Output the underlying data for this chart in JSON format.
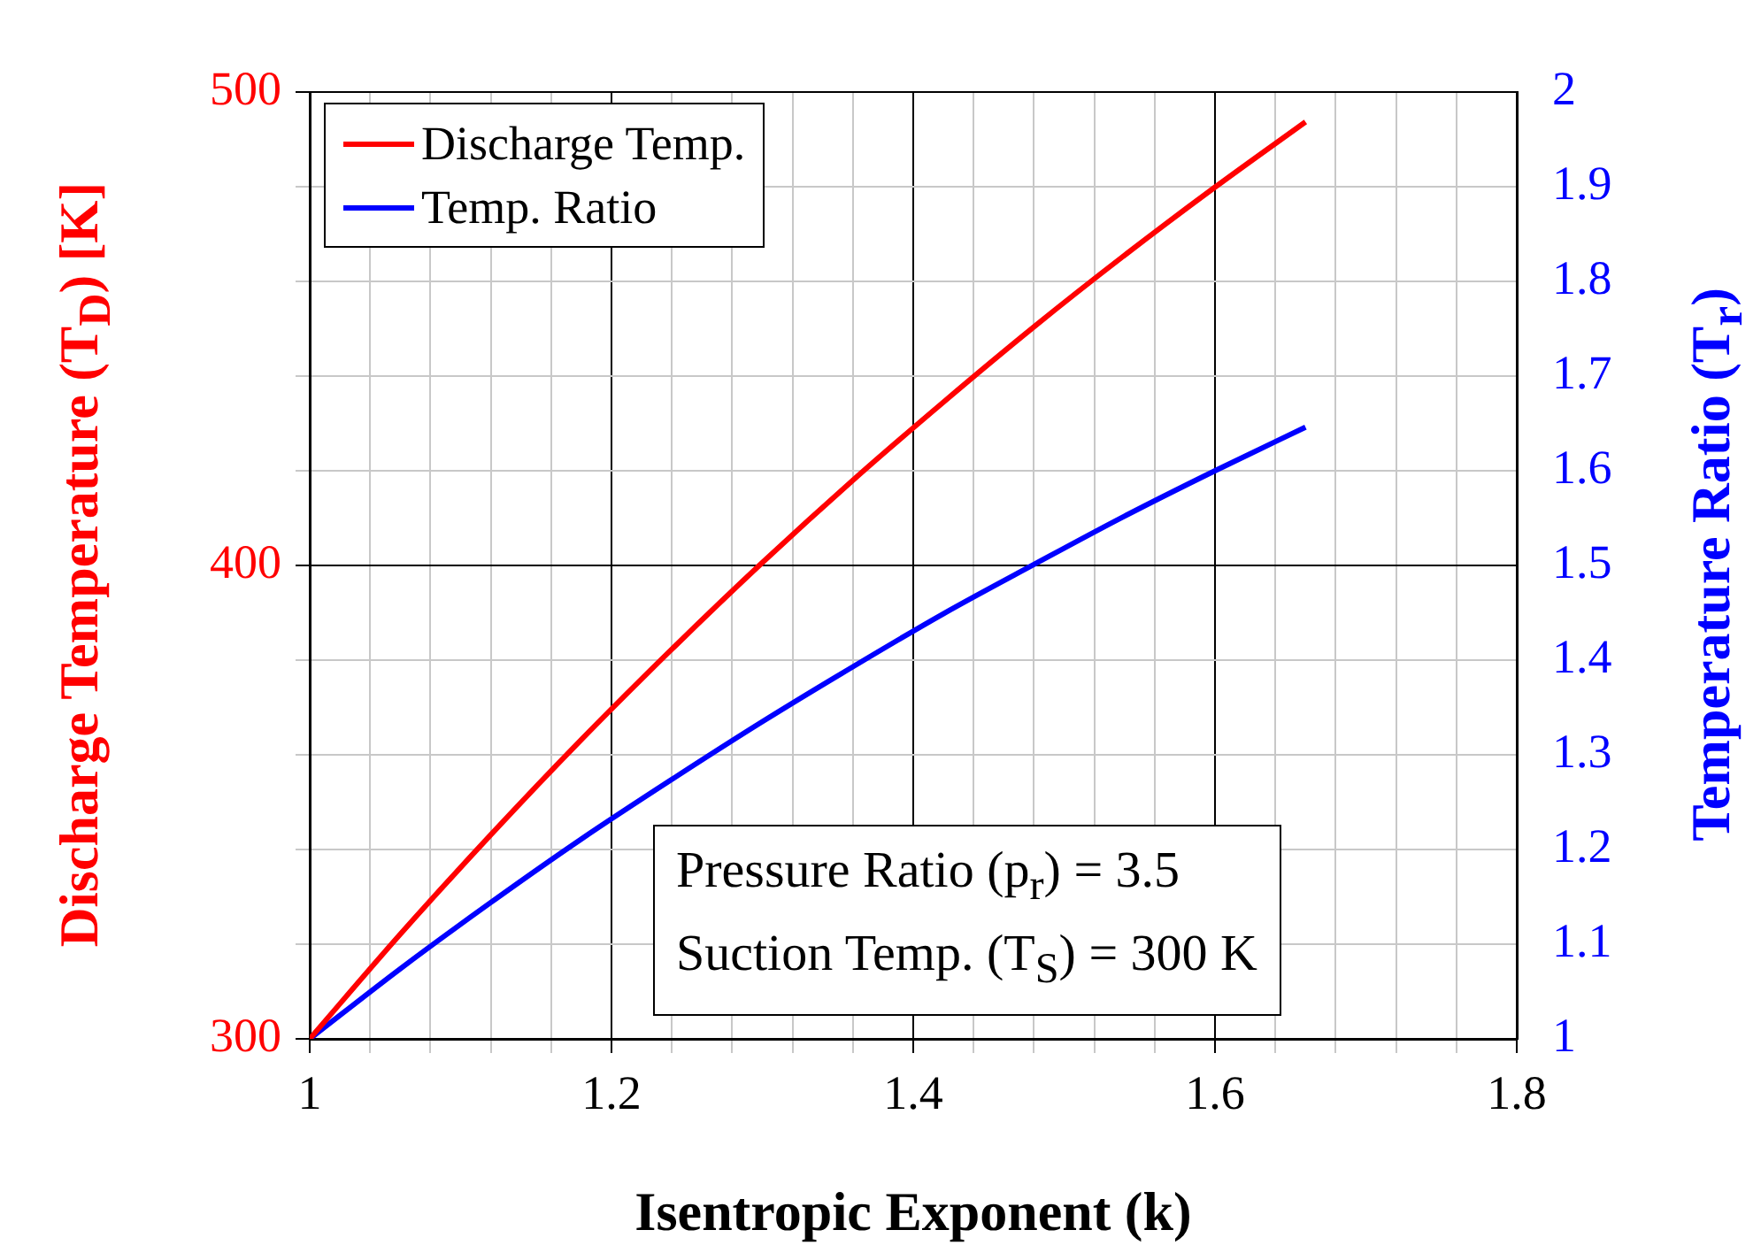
{
  "chart_data": {
    "type": "line",
    "xlabel": "Isentropic Exponent (k)",
    "ylabel": "Discharge Temperature (T$_{D}$) [K]",
    "y2label": "Temperature Ratio (T$_{r}$)",
    "x": [
      1,
      1.06,
      1.12,
      1.18,
      1.24,
      1.3,
      1.36,
      1.42,
      1.48,
      1.54,
      1.6,
      1.66
    ],
    "series": [
      {
        "name": "Discharge Temp.",
        "color": "#ff0000",
        "values": [
          300,
          322.1,
          343.1,
          363.2,
          382.3,
          400.6,
          418,
          434.5,
          450.4,
          465.5,
          479.9,
          493.7
        ]
      },
      {
        "name": "Temp. Ratio",
        "color": "#0000ff",
        "axis": "y2",
        "values": [
          1,
          1.074,
          1.144,
          1.211,
          1.274,
          1.335,
          1.393,
          1.449,
          1.501,
          1.552,
          1.6,
          1.646
        ]
      }
    ],
    "xlim": [
      1,
      1.8
    ],
    "xticks": [
      1,
      {
        "value": 1.04,
        "label": null
      },
      {
        "value": 1.08,
        "label": null
      },
      {
        "value": 1.12,
        "label": null
      },
      {
        "value": 1.16,
        "label": null
      },
      1.2,
      {
        "value": 1.24,
        "label": null
      },
      {
        "value": 1.28,
        "label": null
      },
      {
        "value": 1.32,
        "label": null
      },
      {
        "value": 1.36,
        "label": null
      },
      1.4,
      {
        "value": 1.44,
        "label": null
      },
      {
        "value": 1.48,
        "label": null
      },
      {
        "value": 1.52,
        "label": null
      },
      {
        "value": 1.56,
        "label": null
      },
      1.6,
      {
        "value": 1.64,
        "label": null
      },
      {
        "value": 1.68,
        "label": null
      },
      {
        "value": 1.72,
        "label": null
      },
      {
        "value": 1.76,
        "label": null
      },
      1.8
    ],
    "ylim": [
      300,
      500
    ],
    "yticks": [
      300,
      {
        "value": 320,
        "label": null
      },
      {
        "value": 340,
        "label": null
      },
      {
        "value": 360,
        "label": null
      },
      {
        "value": 380,
        "label": null
      },
      400,
      {
        "value": 420,
        "label": null
      },
      {
        "value": 440,
        "label": null
      },
      {
        "value": 460,
        "label": null
      },
      {
        "value": 480,
        "label": null
      },
      500
    ],
    "y2lim": [
      1,
      2
    ],
    "y2ticks": [
      1,
      1.1,
      1.2,
      1.3,
      1.4,
      1.5,
      1.6,
      1.7,
      1.8,
      1.9,
      2
    ],
    "grid": true,
    "legend": "top left",
    "marker": "none",
    "line_style": "solid",
    "annotations": [
      "Pressure Ratio (p$_{r}$) = 3.5",
      "Suction Temp. (T$_{S}$) = 300 K"
    ]
  }
}
